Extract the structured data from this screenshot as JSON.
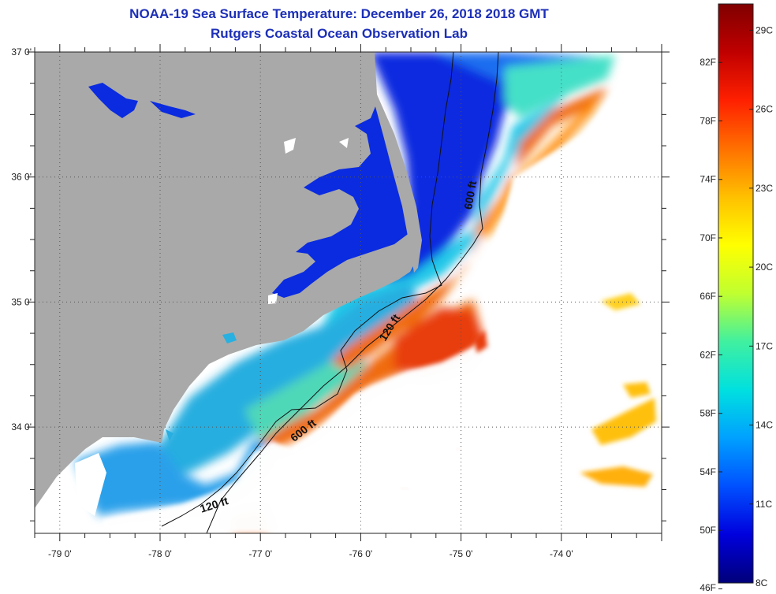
{
  "header": {
    "title": "NOAA-19 Sea Surface Temperature:  December 26, 2018 2018 GMT",
    "subtitle": "Rutgers Coastal Ocean Observation Lab"
  },
  "axes": {
    "lon_labels": [
      "-79 0'",
      "-78 0'",
      "-77 0'",
      "-76 0'",
      "-75 0'",
      "-74 0'"
    ],
    "lat_labels": [
      "37 0'",
      "36 0'",
      "35 0'",
      "34 0'"
    ],
    "lon_range": [
      -79.25,
      -73.0
    ],
    "lat_range": [
      33.15,
      37.0
    ]
  },
  "isobaths": {
    "labels": [
      {
        "text": "600 ft",
        "lon": -74.87,
        "lat": 35.85,
        "rotate": -80
      },
      {
        "text": "120 ft",
        "lon": -75.68,
        "lat": 34.78,
        "rotate": -58
      },
      {
        "text": "600 ft",
        "lon": -76.55,
        "lat": 33.95,
        "rotate": -38
      },
      {
        "text": "120 ft",
        "lon": -77.45,
        "lat": 33.35,
        "rotate": -18
      }
    ]
  },
  "colorbar": {
    "fahrenheit_labels": [
      "82F",
      "78F",
      "74F",
      "70F",
      "66F",
      "62F",
      "58F",
      "54F",
      "50F",
      "46F"
    ],
    "celsius_labels": [
      "29C",
      "26C",
      "23C",
      "20C",
      "17C",
      "14C",
      "11C",
      "8C"
    ],
    "min_c": 8,
    "max_c": 30,
    "stops": [
      "#00007a",
      "#0000dd",
      "#0050ff",
      "#00a0ff",
      "#00e0e0",
      "#40f0a0",
      "#c0ff30",
      "#ffff00",
      "#ffc000",
      "#ff7000",
      "#ff2000",
      "#c00000",
      "#800000"
    ]
  },
  "colors": {
    "land": "#a9a9a9",
    "no_data": "#ffffff",
    "cold": "#0a2be0",
    "cool": "#1e9be8",
    "mid": "#38e0d0",
    "warm": "#f06010",
    "text_title": "#1c2fb8"
  }
}
